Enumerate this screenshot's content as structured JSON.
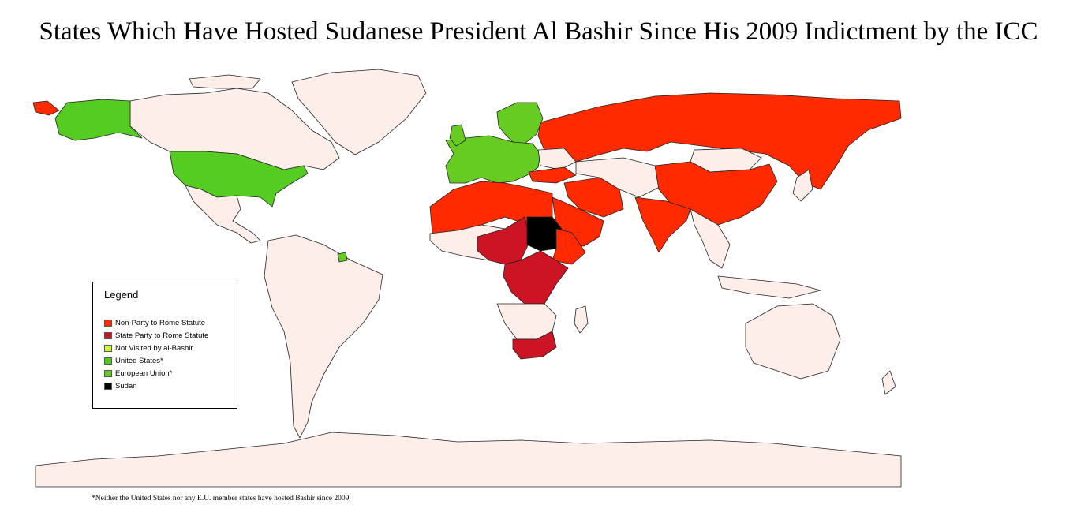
{
  "title": "States Which Have Hosted Sudanese President Al Bashir Since His 2009 Indictment by the ICC",
  "legend": {
    "title": "Legend",
    "items": [
      {
        "label": "Non-Party to Rome Statute",
        "color": "#ff2a00"
      },
      {
        "label": "State Party to Rome Statute",
        "color": "#cc1425"
      },
      {
        "label": "Not Visited by al-Bashir",
        "color": "#ccff33"
      },
      {
        "label": "United States*",
        "color": "#55cc22"
      },
      {
        "label": "European Union*",
        "color": "#66cc22"
      },
      {
        "label": "Sudan",
        "color": "#000000"
      }
    ]
  },
  "footnote": "*Neither the United States nor any E.U. member states have hosted Bashir since 2009",
  "colors": {
    "land": "#fdeeea",
    "border": "#222222",
    "non_party": "#ff2a00",
    "state_party": "#cc1425",
    "us": "#55cc22",
    "eu": "#66cc22",
    "sudan": "#000000"
  }
}
